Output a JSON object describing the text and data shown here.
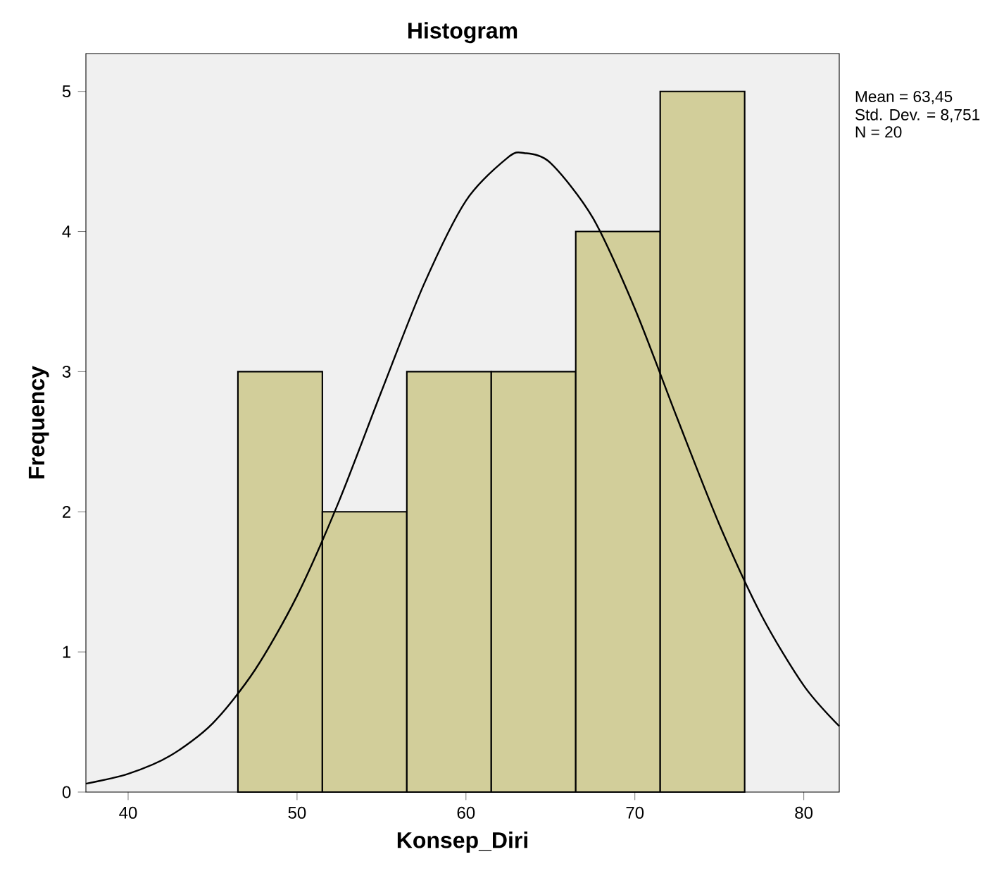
{
  "chart_data": {
    "type": "histogram",
    "title": "Histogram",
    "xlabel": "Konsep_Diri",
    "ylabel": "Frequency",
    "bins": [
      46.5,
      51.5,
      56.5,
      61.5,
      66.5,
      71.5,
      76.5
    ],
    "values": [
      3,
      2,
      3,
      3,
      4,
      5
    ],
    "color": "#d2ce9a",
    "series": [
      {
        "type": "line",
        "color": "#000000",
        "x": [
          37.5,
          40,
          42.5,
          45,
          47.5,
          50,
          52.5,
          55,
          57.5,
          60,
          62.5,
          63.45,
          65,
          67.5,
          70,
          72.5,
          75,
          77.5,
          80,
          82.1
        ],
        "values": [
          0.06,
          0.13,
          0.26,
          0.49,
          0.87,
          1.4,
          2.08,
          2.86,
          3.62,
          4.22,
          4.53,
          4.56,
          4.49,
          4.1,
          3.45,
          2.67,
          1.91,
          1.26,
          0.76,
          0.47
        ]
      }
    ],
    "xlim": [
      37.5,
      82.1
    ],
    "ylim": [
      0,
      5.27
    ],
    "xticks": [
      40,
      50,
      60,
      70,
      80
    ],
    "yticks": [
      0,
      1,
      2,
      3,
      4,
      5
    ],
    "annotations": [
      "Mean = 63,45",
      "Std. Dev. = 8,751",
      "N = 20"
    ]
  }
}
